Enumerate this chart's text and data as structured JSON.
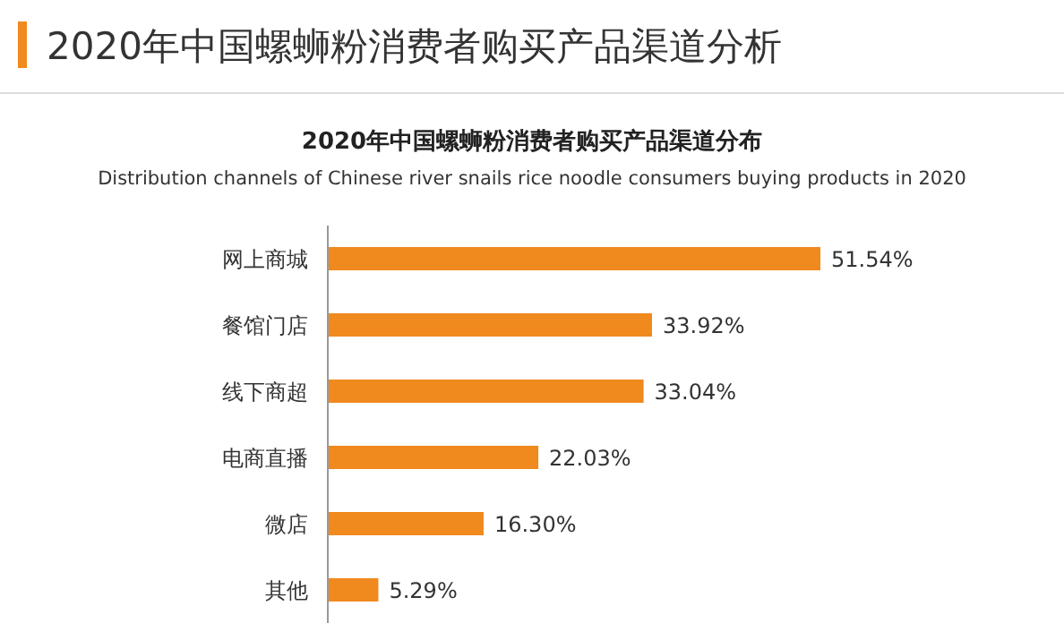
{
  "chart_data": {
    "type": "bar",
    "orientation": "horizontal",
    "title": "2020年中国螺蛳粉消费者购买产品渠道分析",
    "subtitle": "2020年中国螺蛳粉消费者购买产品渠道分布",
    "annotations": [
      "Distribution channels of Chinese river snails rice noodle consumers buying products in 2020"
    ],
    "categories": [
      "网上商城",
      "餐馆门店",
      "线下商超",
      "电商直播",
      "微店",
      "其他"
    ],
    "values": [
      51.54,
      33.92,
      33.04,
      22.03,
      16.3,
      5.29
    ],
    "value_labels": [
      "51.54%",
      "33.92%",
      "33.04%",
      "22.03%",
      "16.30%",
      "5.29%"
    ],
    "color": "#f0891e"
  }
}
